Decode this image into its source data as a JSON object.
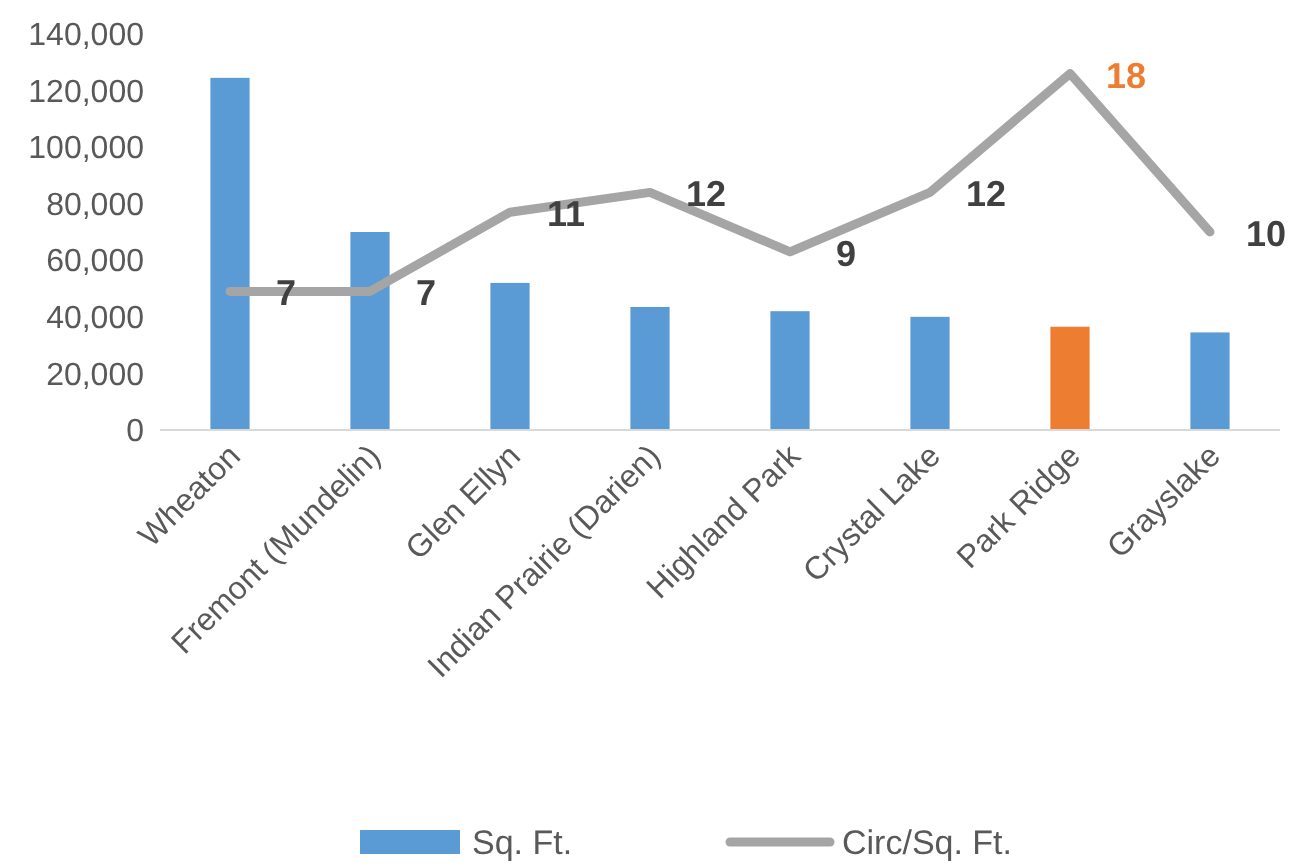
{
  "chart_data": {
    "type": "bar",
    "categories": [
      "Wheaton",
      "Fremont (Mundelin)",
      "Glen Ellyn",
      "Indian Prairie (Darien)",
      "Highland Park",
      "Crystal Lake",
      "Park Ridge",
      "Grayslake"
    ],
    "series": [
      {
        "name": "Sq. Ft.",
        "color": "#5b9bd5",
        "colors": [
          "#5b9bd5",
          "#5b9bd5",
          "#5b9bd5",
          "#5b9bd5",
          "#5b9bd5",
          "#5b9bd5",
          "#ed7d31",
          "#5b9bd5"
        ],
        "values": [
          124500,
          70000,
          52000,
          43500,
          42000,
          40000,
          36500,
          34500
        ]
      },
      {
        "name": "Circ/Sq. Ft.",
        "type": "line",
        "axis": "y2",
        "color": "#a5a5a5",
        "data_labels": true,
        "values": [
          7,
          7,
          11,
          12,
          9,
          12,
          18,
          10
        ]
      }
    ],
    "ylim": [
      0,
      140000
    ],
    "yticks": [
      {
        "value": 0,
        "label": "0"
      },
      {
        "value": 20000,
        "label": "20,000"
      },
      {
        "value": 40000,
        "label": "40,000"
      },
      {
        "value": 60000,
        "label": "60,000"
      },
      {
        "value": 80000,
        "label": "80,000"
      },
      {
        "value": 100000,
        "label": "100,000"
      },
      {
        "value": 120000,
        "label": "120,000"
      },
      {
        "value": 140000,
        "label": "140,000"
      }
    ],
    "legend": "bottom",
    "grid": false,
    "marker": "none"
  }
}
